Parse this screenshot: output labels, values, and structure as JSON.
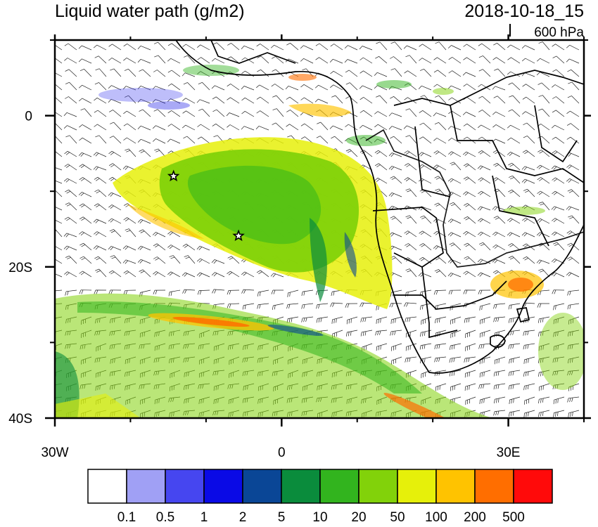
{
  "title": "Liquid water path (g/m2)",
  "datetime": "2018-10-18_15",
  "level": "600 hPa",
  "map": {
    "lon_range": [
      -30,
      40
    ],
    "lat_range": [
      -40,
      10
    ],
    "x_ticks": [
      {
        "lon": -30,
        "label": "30W"
      },
      {
        "lon": 0,
        "label": "0"
      },
      {
        "lon": 30,
        "label": "30E"
      }
    ],
    "y_ticks": [
      {
        "lat": 0,
        "label": "0"
      },
      {
        "lat": -20,
        "label": "20S"
      },
      {
        "lat": -40,
        "label": "40S"
      }
    ],
    "minor_lon_ticks": [
      -20,
      -10,
      10,
      20,
      40
    ],
    "minor_lat_ticks": [
      10,
      -10,
      -30
    ]
  },
  "stars": [
    {
      "lon": -14.3,
      "lat": -8.0
    },
    {
      "lon": -5.7,
      "lat": -15.9
    }
  ],
  "colorbar": {
    "colors": [
      "#ffffff",
      "#a0a0f5",
      "#4646f0",
      "#0a0ae6",
      "#0a4696",
      "#0a8c3c",
      "#32b41e",
      "#82d20a",
      "#e6f00a",
      "#ffc300",
      "#ff6e00",
      "#ff0a0a"
    ],
    "labels": [
      "0.1",
      "0.5",
      "1",
      "2",
      "5",
      "10",
      "20",
      "50",
      "100",
      "200",
      "500"
    ]
  }
}
